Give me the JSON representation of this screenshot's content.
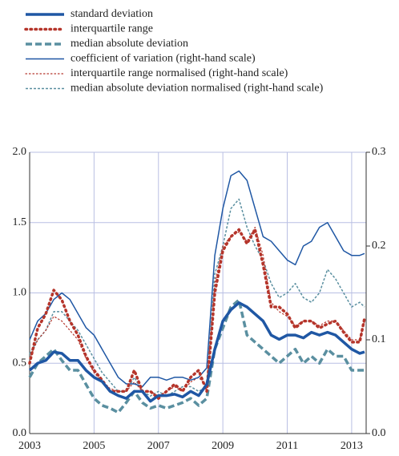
{
  "chart_data": {
    "type": "line",
    "x": [
      2003,
      2003.25,
      2003.5,
      2003.75,
      2004,
      2004.25,
      2004.5,
      2004.75,
      2005,
      2005.25,
      2005.5,
      2005.75,
      2006,
      2006.25,
      2006.5,
      2006.75,
      2007,
      2007.25,
      2007.5,
      2007.75,
      2008,
      2008.25,
      2008.5,
      2008.75,
      2009,
      2009.25,
      2009.5,
      2009.75,
      2010,
      2010.25,
      2010.5,
      2010.75,
      2011,
      2011.25,
      2011.5,
      2011.75,
      2012,
      2012.25,
      2012.5,
      2012.75,
      2013,
      2013.25,
      2013.4
    ],
    "xlim": [
      2003,
      2013.45
    ],
    "xticks": [
      2003,
      2005,
      2007,
      2009,
      2011,
      2013
    ],
    "ylim": [
      0,
      2
    ],
    "yticks": [
      {
        "value": 0,
        "label": "0.0"
      },
      0.5,
      {
        "value": 1,
        "label": "1.0"
      },
      1.5,
      {
        "value": 2,
        "label": "2.0"
      }
    ],
    "y2lim": [
      0,
      0.3
    ],
    "y2ticks": [
      {
        "value": 0,
        "label": "0.0"
      },
      0.1,
      0.2,
      0.3
    ],
    "grid": true,
    "series": [
      {
        "name": "standard deviation",
        "color": "#1f57a4",
        "style": "solid",
        "width": 3.5,
        "values": [
          0.45,
          0.5,
          0.52,
          0.58,
          0.57,
          0.52,
          0.52,
          0.45,
          0.4,
          0.37,
          0.3,
          0.27,
          0.25,
          0.3,
          0.3,
          0.23,
          0.27,
          0.27,
          0.28,
          0.26,
          0.3,
          0.27,
          0.35,
          0.6,
          0.8,
          0.88,
          0.93,
          0.9,
          0.85,
          0.8,
          0.7,
          0.67,
          0.7,
          0.7,
          0.68,
          0.72,
          0.7,
          0.72,
          0.7,
          0.65,
          0.6,
          0.57,
          0.58
        ]
      },
      {
        "name": "interquartile range",
        "color": "#b5352b",
        "style": "dotted",
        "width": 3.5,
        "values": [
          0.5,
          0.75,
          0.85,
          1.02,
          0.95,
          0.8,
          0.7,
          0.55,
          0.45,
          0.38,
          0.3,
          0.3,
          0.3,
          0.45,
          0.3,
          0.3,
          0.25,
          0.3,
          0.35,
          0.3,
          0.4,
          0.45,
          0.3,
          1.0,
          1.3,
          1.4,
          1.45,
          1.35,
          1.45,
          1.2,
          0.9,
          0.9,
          0.85,
          0.75,
          0.8,
          0.8,
          0.75,
          0.78,
          0.8,
          0.72,
          0.65,
          0.65,
          0.82
        ]
      },
      {
        "name": "median absolute deviation",
        "color": "#5a8fa0",
        "style": "dashed",
        "width": 3.5,
        "values": [
          0.4,
          0.5,
          0.55,
          0.6,
          0.52,
          0.45,
          0.45,
          0.35,
          0.25,
          0.2,
          0.18,
          0.15,
          0.22,
          0.3,
          0.22,
          0.18,
          0.2,
          0.18,
          0.2,
          0.22,
          0.25,
          0.2,
          0.25,
          0.6,
          0.75,
          0.9,
          0.95,
          0.7,
          0.65,
          0.6,
          0.55,
          0.5,
          0.55,
          0.6,
          0.5,
          0.55,
          0.5,
          0.6,
          0.55,
          0.55,
          0.45,
          0.45,
          0.45
        ]
      },
      {
        "name": "coefficient of variation (right-hand scale)",
        "color": "#1f57a4",
        "style": "solid",
        "width": 1.5,
        "axis": "y2",
        "values": [
          0.1,
          0.12,
          0.128,
          0.143,
          0.15,
          0.143,
          0.128,
          0.113,
          0.105,
          0.09,
          0.075,
          0.06,
          0.053,
          0.053,
          0.05,
          0.06,
          0.06,
          0.057,
          0.06,
          0.06,
          0.057,
          0.06,
          0.07,
          0.19,
          0.24,
          0.275,
          0.28,
          0.27,
          0.24,
          0.21,
          0.205,
          0.195,
          0.185,
          0.18,
          0.2,
          0.205,
          0.22,
          0.225,
          0.21,
          0.195,
          0.19,
          0.19,
          0.192
        ]
      },
      {
        "name": "interquartile range normalised (right-hand scale)",
        "color": "#b5352b",
        "style": "dotted",
        "width": 1.2,
        "axis": "y2",
        "values": [
          0.08,
          0.1,
          0.11,
          0.125,
          0.12,
          0.11,
          0.1,
          0.08,
          0.065,
          0.055,
          0.048,
          0.045,
          0.045,
          0.055,
          0.045,
          0.045,
          0.04,
          0.045,
          0.05,
          0.045,
          0.055,
          0.06,
          0.05,
          0.16,
          0.2,
          0.21,
          0.215,
          0.205,
          0.22,
          0.19,
          0.14,
          0.13,
          0.125,
          0.115,
          0.12,
          0.12,
          0.115,
          0.12,
          0.12,
          0.11,
          0.1,
          0.1,
          0.12
        ]
      },
      {
        "name": "median absolute deviation normalised (right-hand scale)",
        "color": "#5a8fa0",
        "style": "dashed",
        "width": 1.5,
        "axis": "y2",
        "values": [
          0.085,
          0.1,
          0.11,
          0.13,
          0.13,
          0.12,
          0.11,
          0.095,
          0.08,
          0.065,
          0.055,
          0.045,
          0.045,
          0.06,
          0.045,
          0.04,
          0.045,
          0.04,
          0.045,
          0.05,
          0.05,
          0.045,
          0.05,
          0.17,
          0.2,
          0.24,
          0.25,
          0.22,
          0.2,
          0.185,
          0.16,
          0.145,
          0.15,
          0.16,
          0.145,
          0.14,
          0.15,
          0.175,
          0.165,
          0.15,
          0.135,
          0.14,
          0.135
        ]
      }
    ]
  }
}
